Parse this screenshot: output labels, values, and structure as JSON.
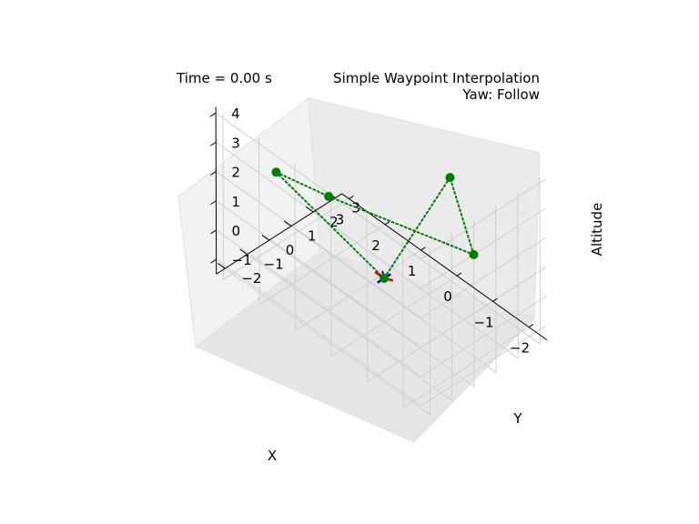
{
  "time_label": "Time = 0.00 s",
  "title": "Simple Waypoint Interpolation",
  "subtitle": "Yaw: Follow",
  "chart_data": {
    "type": "line3d",
    "xlabel": "X",
    "ylabel": "Y",
    "zlabel": "Altitude",
    "x_ticks": [
      "−2",
      "−1",
      "0",
      "1",
      "2",
      "3"
    ],
    "y_ticks": [
      "−2",
      "−1",
      "0",
      "1",
      "2",
      "3"
    ],
    "z_ticks": [
      "4",
      "3",
      "2",
      "1",
      "0",
      "−1"
    ],
    "xlim": [
      -2.5,
      3.2
    ],
    "ylim": [
      -2.4,
      3.3
    ],
    "zlim": [
      -1.5,
      4.2
    ],
    "grid": true,
    "waypoints": [
      {
        "x": 0.0,
        "y": 0.0,
        "z": 0.0
      },
      {
        "x": 3.0,
        "y": 0.0,
        "z": 1.0
      },
      {
        "x": 0.0,
        "y": 3.0,
        "z": 2.0
      },
      {
        "x": -2.5,
        "y": 0.0,
        "z": 3.0
      },
      {
        "x": 0.0,
        "y": -2.5,
        "z": 4.0
      }
    ],
    "path_style": "dotted",
    "path_color": "#008000",
    "marker_color": "#008000",
    "drone": {
      "x": 0.0,
      "y": 0.0,
      "z": 0.0,
      "arm_colors": [
        "#e00000",
        "#0000cc",
        "#008000"
      ]
    }
  }
}
